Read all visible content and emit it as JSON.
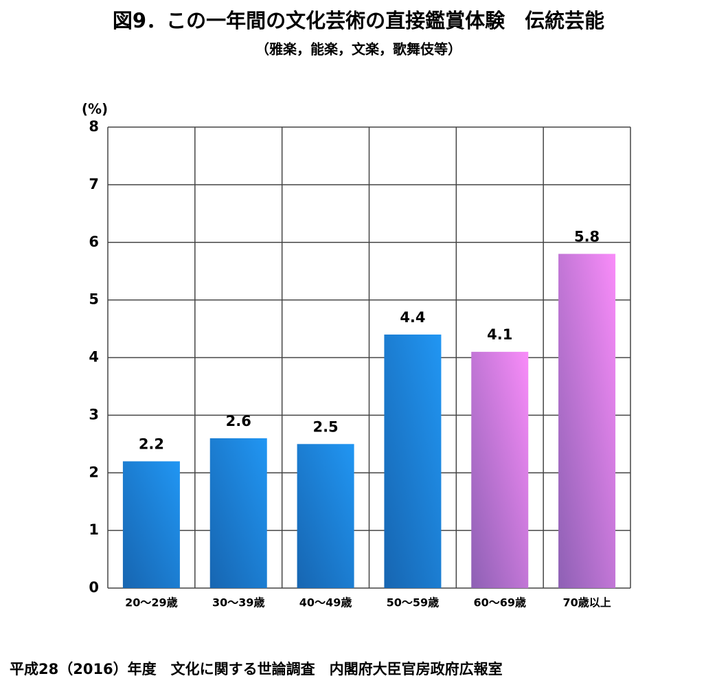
{
  "chart_data": {
    "type": "bar",
    "title": "図9．この一年間の文化芸術の直接鑑賞体験　伝統芸能",
    "subtitle": "（雅楽，能楽，文楽，歌舞伎等）",
    "y_label": "(%)",
    "categories": [
      "20～29歳",
      "30～39歳",
      "40～49歳",
      "50～59歳",
      "60～69歳",
      "70歳以上"
    ],
    "values": [
      2.2,
      2.6,
      2.5,
      4.4,
      4.1,
      5.8
    ],
    "colors": [
      "#2196f3",
      "#2196f3",
      "#2196f3",
      "#2196f3",
      "#f98cf9",
      "#f98cf9"
    ],
    "ylim": [
      0,
      8
    ],
    "yticks": [
      0,
      1,
      2,
      3,
      4,
      5,
      6,
      7,
      8
    ],
    "grid": true,
    "source": "平成28（2016）年度　文化に関する世論調査　内閣府大臣官房政府広報室"
  }
}
